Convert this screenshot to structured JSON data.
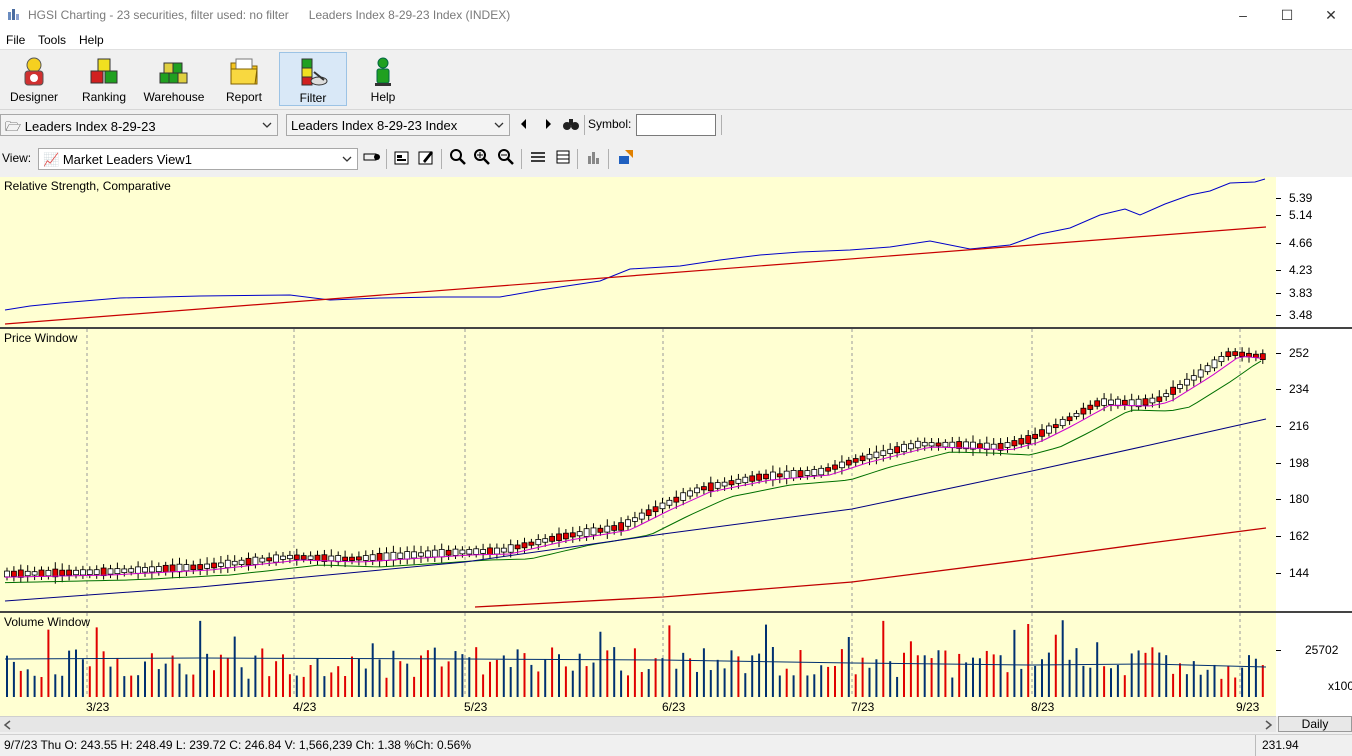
{
  "window": {
    "title": "HGSI Charting - 23 securities, filter used: no filter      Leaders Index 8-29-23 Index (INDEX)",
    "minimize": "–",
    "maximize": "☐",
    "close": "✕"
  },
  "menu": [
    "File",
    "Tools",
    "Help"
  ],
  "toolbar": {
    "buttons": [
      {
        "label": "Designer",
        "icon": "designer-icon"
      },
      {
        "label": "Ranking",
        "icon": "ranking-icon"
      },
      {
        "label": "Warehouse",
        "icon": "warehouse-icon"
      },
      {
        "label": "Report",
        "icon": "report-icon"
      },
      {
        "label": "Filter",
        "icon": "filter-icon",
        "active": true
      },
      {
        "label": "Help",
        "icon": "help-icon"
      }
    ]
  },
  "selectors": {
    "folder_value": "Leaders Index 8-29-23",
    "security_value": "Leaders Index 8-29-23 Index",
    "symbol_label": "Symbol:",
    "symbol_value": ""
  },
  "view": {
    "label": "View:",
    "value": "Market Leaders View1"
  },
  "panels": {
    "rs_title": "Relative Strength, Comparative",
    "price_title": "Price Window",
    "volume_title": "Volume Window"
  },
  "scales": {
    "rs_ticks": [
      "5.39",
      "5.14",
      "4.66",
      "4.23",
      "3.83",
      "3.48"
    ],
    "price_ticks": [
      "252",
      "234",
      "216",
      "198",
      "180",
      "162",
      "144"
    ],
    "volume_tick": "25702",
    "volume_unit": "x100"
  },
  "x_labels": [
    "3/23",
    "4/23",
    "5/23",
    "6/23",
    "7/23",
    "8/23",
    "9/23"
  ],
  "period_button": "Daily",
  "status": {
    "text": "9/7/23 Thu O: 243.55 H: 248.49 L: 239.72 C: 246.84 V: 1,566,239 Ch: 1.38 %Ch: 0.56%",
    "right": "231.94"
  },
  "colors": {
    "panel_bg": "#ffffd2",
    "rs_line": "#0000c8",
    "rs_avg": "#c80000",
    "up_candle": "#ffffff",
    "down_candle": "#e00000",
    "ma_fast": "#d000d0",
    "ma_mid": "#007000",
    "ma_slow": "#000080",
    "ma_long": "#c00000",
    "vol_up": "#003070",
    "vol_down": "#e00000"
  }
}
